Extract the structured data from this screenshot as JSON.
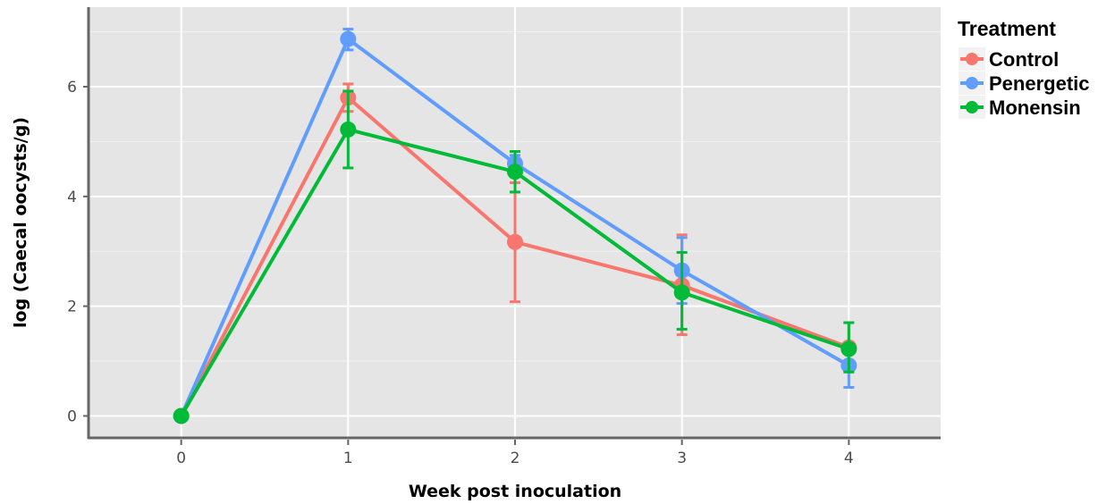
{
  "chart_data": {
    "type": "line",
    "xlabel": "Week post inoculation",
    "ylabel": "log (Caecal oocysts/g)",
    "x": [
      0,
      1,
      2,
      3,
      4
    ],
    "xlim": [
      -0.55,
      4.55
    ],
    "ylim": [
      -0.4,
      7.45
    ],
    "xticks": [
      "0",
      "1",
      "2",
      "3",
      "4"
    ],
    "yticks": [
      "0",
      "2",
      "4",
      "6"
    ],
    "grid": true,
    "legend": {
      "title": "Treatment",
      "position": "right"
    },
    "error_bars": true,
    "series": [
      {
        "name": "Control",
        "color": "#F8766D",
        "values": [
          0,
          5.8,
          3.17,
          2.38,
          1.25
        ],
        "err_low": [
          0,
          5.55,
          2.08,
          1.48,
          0.82
        ],
        "err_high": [
          0,
          6.05,
          4.25,
          3.3,
          1.7
        ]
      },
      {
        "name": "Penergetic",
        "color": "#619CFF",
        "values": [
          0,
          6.87,
          4.6,
          2.65,
          0.92
        ],
        "err_low": [
          0,
          6.67,
          4.45,
          2.05,
          0.52
        ],
        "err_high": [
          0,
          7.05,
          4.75,
          3.25,
          1.25
        ]
      },
      {
        "name": "Monensin",
        "color": "#00BA38",
        "values": [
          0,
          5.22,
          4.45,
          2.25,
          1.22
        ],
        "err_low": [
          0,
          4.52,
          4.08,
          1.58,
          0.8
        ],
        "err_high": [
          0,
          5.92,
          4.82,
          2.98,
          1.7
        ]
      }
    ]
  }
}
